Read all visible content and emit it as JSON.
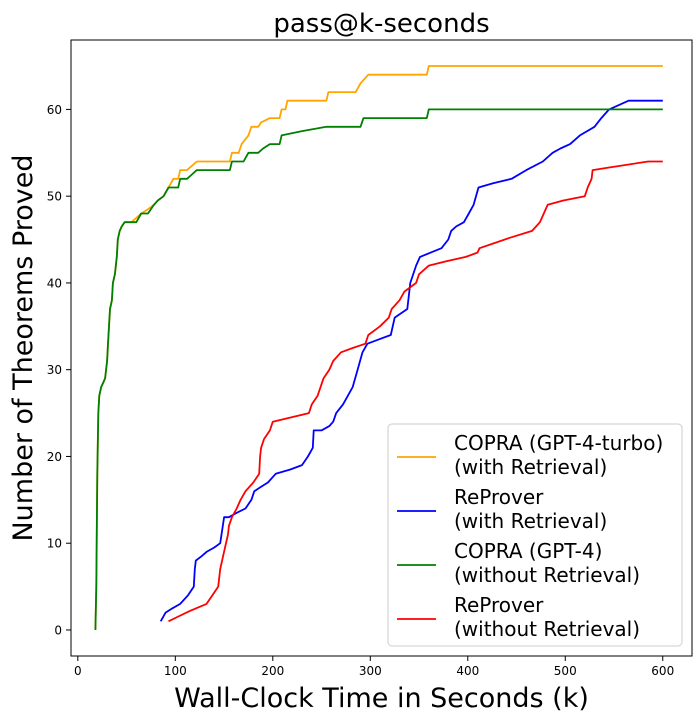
{
  "chart_data": {
    "type": "line",
    "title": "pass@k-seconds",
    "xlabel": "Wall-Clock Time in Seconds (k)",
    "ylabel": "Number of Theorems Proved",
    "xlim": [
      -7,
      630
    ],
    "ylim": [
      -3,
      68
    ],
    "xticks": [
      0,
      100,
      200,
      300,
      400,
      500,
      600
    ],
    "yticks": [
      0,
      10,
      20,
      30,
      40,
      50,
      60
    ],
    "xtick_labels": [
      "0",
      "100",
      "200",
      "300",
      "400",
      "500",
      "600"
    ],
    "ytick_labels": [
      "0",
      "10",
      "20",
      "30",
      "40",
      "50",
      "60"
    ],
    "legend_position": "lower-right",
    "series": [
      {
        "name": "COPRA (GPT-4-turbo) (with Retrieval)",
        "legend_lines": [
          "COPRA (GPT-4-turbo)",
          "(with Retrieval)"
        ],
        "color": "#ffa500",
        "points": [
          [
            18,
            0
          ],
          [
            19,
            5
          ],
          [
            20,
            18
          ],
          [
            21,
            25
          ],
          [
            22,
            27
          ],
          [
            24,
            28
          ],
          [
            26,
            28.5
          ],
          [
            28,
            29
          ],
          [
            30,
            31
          ],
          [
            31,
            33
          ],
          [
            32,
            35
          ],
          [
            33,
            37
          ],
          [
            35,
            38
          ],
          [
            36,
            40
          ],
          [
            38,
            41
          ],
          [
            40,
            43
          ],
          [
            41,
            45
          ],
          [
            43,
            46
          ],
          [
            45,
            46.5
          ],
          [
            48,
            47
          ],
          [
            55,
            47
          ],
          [
            60,
            47.5
          ],
          [
            65,
            48
          ],
          [
            72,
            48.5
          ],
          [
            78,
            49
          ],
          [
            82,
            49.5
          ],
          [
            88,
            50
          ],
          [
            93,
            51
          ],
          [
            98,
            52
          ],
          [
            103,
            52
          ],
          [
            105,
            53
          ],
          [
            112,
            53
          ],
          [
            117,
            53.5
          ],
          [
            122,
            54
          ],
          [
            140,
            54
          ],
          [
            156,
            54
          ],
          [
            158,
            55
          ],
          [
            165,
            55
          ],
          [
            168,
            56
          ],
          [
            175,
            57
          ],
          [
            178,
            58
          ],
          [
            185,
            58
          ],
          [
            188,
            58.5
          ],
          [
            197,
            59
          ],
          [
            207,
            59
          ],
          [
            209,
            60
          ],
          [
            213,
            60
          ],
          [
            215,
            61
          ],
          [
            255,
            61
          ],
          [
            257,
            62
          ],
          [
            285,
            62
          ],
          [
            290,
            63
          ],
          [
            298,
            64
          ],
          [
            358,
            64
          ],
          [
            360,
            65
          ],
          [
            600,
            65
          ]
        ]
      },
      {
        "name": "ReProver (with Retrieval)",
        "legend_lines": [
          "ReProver",
          "(with Retrieval)"
        ],
        "color": "#0000ff",
        "points": [
          [
            85,
            1
          ],
          [
            90,
            2
          ],
          [
            97,
            2.5
          ],
          [
            105,
            3
          ],
          [
            113,
            4
          ],
          [
            119,
            5
          ],
          [
            120,
            7
          ],
          [
            121,
            8
          ],
          [
            127,
            8.5
          ],
          [
            132,
            9
          ],
          [
            140,
            9.5
          ],
          [
            146,
            10
          ],
          [
            150,
            13
          ],
          [
            155,
            13
          ],
          [
            163,
            13.5
          ],
          [
            172,
            14
          ],
          [
            178,
            15
          ],
          [
            181,
            16
          ],
          [
            188,
            16.5
          ],
          [
            195,
            17
          ],
          [
            203,
            18
          ],
          [
            218,
            18.5
          ],
          [
            230,
            19
          ],
          [
            236,
            20
          ],
          [
            241,
            21
          ],
          [
            242,
            23
          ],
          [
            250,
            23
          ],
          [
            258,
            23.5
          ],
          [
            262,
            24
          ],
          [
            265,
            25
          ],
          [
            272,
            26
          ],
          [
            277,
            27
          ],
          [
            282,
            28
          ],
          [
            287,
            30
          ],
          [
            292,
            32
          ],
          [
            297,
            33
          ],
          [
            309,
            33.5
          ],
          [
            321,
            34
          ],
          [
            325,
            36
          ],
          [
            338,
            37
          ],
          [
            341,
            40
          ],
          [
            347,
            42
          ],
          [
            351,
            43
          ],
          [
            362,
            43.5
          ],
          [
            373,
            44
          ],
          [
            380,
            45
          ],
          [
            383,
            46
          ],
          [
            388,
            46.5
          ],
          [
            396,
            47
          ],
          [
            401,
            48
          ],
          [
            406,
            49
          ],
          [
            411,
            51
          ],
          [
            426,
            51.5
          ],
          [
            445,
            52
          ],
          [
            460,
            53
          ],
          [
            477,
            54
          ],
          [
            487,
            55
          ],
          [
            495,
            55.5
          ],
          [
            505,
            56
          ],
          [
            515,
            57
          ],
          [
            530,
            58
          ],
          [
            537,
            59
          ],
          [
            545,
            60
          ],
          [
            565,
            61
          ],
          [
            600,
            61
          ]
        ]
      },
      {
        "name": "COPRA (GPT-4) (without Retrieval)",
        "legend_lines": [
          "COPRA (GPT-4)",
          "(without Retrieval)"
        ],
        "color": "#008000",
        "points": [
          [
            18,
            0
          ],
          [
            19,
            5
          ],
          [
            20,
            18
          ],
          [
            21,
            25
          ],
          [
            22,
            27
          ],
          [
            24,
            28
          ],
          [
            26,
            28.5
          ],
          [
            28,
            29
          ],
          [
            30,
            31
          ],
          [
            31,
            33
          ],
          [
            32,
            35
          ],
          [
            33,
            37
          ],
          [
            35,
            38
          ],
          [
            36,
            40
          ],
          [
            38,
            41
          ],
          [
            40,
            43
          ],
          [
            41,
            45
          ],
          [
            43,
            46
          ],
          [
            45,
            46.5
          ],
          [
            48,
            47
          ],
          [
            55,
            47
          ],
          [
            60,
            47
          ],
          [
            65,
            48
          ],
          [
            72,
            48
          ],
          [
            78,
            49
          ],
          [
            82,
            49.5
          ],
          [
            88,
            50
          ],
          [
            93,
            51
          ],
          [
            98,
            51
          ],
          [
            103,
            51
          ],
          [
            105,
            52
          ],
          [
            112,
            52
          ],
          [
            117,
            52.5
          ],
          [
            122,
            53
          ],
          [
            140,
            53
          ],
          [
            156,
            53
          ],
          [
            158,
            54
          ],
          [
            170,
            54
          ],
          [
            175,
            55
          ],
          [
            185,
            55
          ],
          [
            190,
            55.5
          ],
          [
            197,
            56
          ],
          [
            207,
            56
          ],
          [
            209,
            57
          ],
          [
            230,
            57.5
          ],
          [
            255,
            58
          ],
          [
            290,
            58
          ],
          [
            293,
            59
          ],
          [
            358,
            59
          ],
          [
            360,
            60
          ],
          [
            600,
            60
          ]
        ]
      },
      {
        "name": "ReProver (without Retrieval)",
        "legend_lines": [
          "ReProver",
          "(without Retrieval)"
        ],
        "color": "#ff0000",
        "points": [
          [
            93,
            1
          ],
          [
            102,
            1.5
          ],
          [
            115,
            2.2
          ],
          [
            132,
            3
          ],
          [
            138,
            4
          ],
          [
            144,
            5
          ],
          [
            146,
            7
          ],
          [
            148,
            8
          ],
          [
            152,
            10
          ],
          [
            154,
            11
          ],
          [
            155,
            12
          ],
          [
            158,
            13
          ],
          [
            163,
            14
          ],
          [
            167,
            15
          ],
          [
            172,
            16
          ],
          [
            180,
            17
          ],
          [
            186,
            18
          ],
          [
            187,
            20
          ],
          [
            188,
            21
          ],
          [
            191,
            22
          ],
          [
            197,
            23
          ],
          [
            200,
            24
          ],
          [
            237,
            25
          ],
          [
            240,
            26
          ],
          [
            246,
            27
          ],
          [
            252,
            29
          ],
          [
            258,
            30
          ],
          [
            262,
            31
          ],
          [
            270,
            32
          ],
          [
            282,
            32.5
          ],
          [
            295,
            33
          ],
          [
            298,
            34
          ],
          [
            310,
            35
          ],
          [
            319,
            36
          ],
          [
            322,
            37
          ],
          [
            330,
            38
          ],
          [
            335,
            39
          ],
          [
            347,
            40
          ],
          [
            350,
            41
          ],
          [
            360,
            42
          ],
          [
            378,
            42.5
          ],
          [
            398,
            43
          ],
          [
            410,
            43.5
          ],
          [
            412,
            44
          ],
          [
            425,
            44.5
          ],
          [
            443,
            45.2
          ],
          [
            466,
            46
          ],
          [
            474,
            47
          ],
          [
            482,
            49
          ],
          [
            498,
            49.5
          ],
          [
            520,
            50
          ],
          [
            523,
            51
          ],
          [
            527,
            52
          ],
          [
            528,
            53
          ],
          [
            545,
            53.3
          ],
          [
            585,
            54
          ],
          [
            600,
            54
          ]
        ]
      }
    ]
  }
}
